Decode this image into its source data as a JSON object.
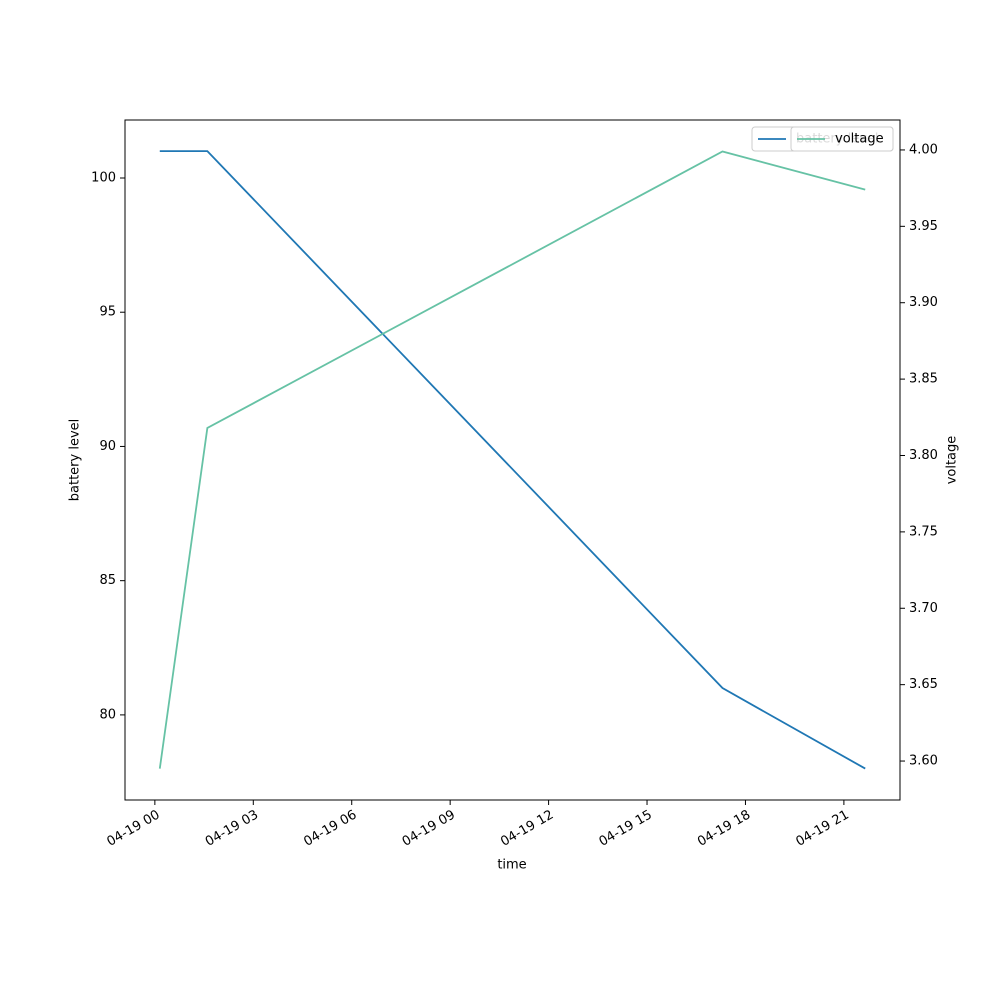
{
  "chart_data": {
    "type": "line",
    "x": [
      0.15,
      1.6,
      17.3,
      21.65
    ],
    "xlim": [
      -0.91,
      22.71
    ],
    "xticks": [
      {
        "value": 0,
        "label": "04-19 00"
      },
      {
        "value": 3,
        "label": "04-19 03"
      },
      {
        "value": 6,
        "label": "04-19 06"
      },
      {
        "value": 9,
        "label": "04-19 09"
      },
      {
        "value": 12,
        "label": "04-19 12"
      },
      {
        "value": 15,
        "label": "04-19 15"
      },
      {
        "value": 18,
        "label": "04-19 18"
      },
      {
        "value": 21,
        "label": "04-19 21"
      }
    ],
    "xlabel": "time",
    "ylabel": "battery level",
    "y2label": "voltage",
    "ylim": [
      76.83,
      102.16
    ],
    "yticks": [
      80,
      85,
      90,
      95,
      100
    ],
    "y2lim": [
      3.5745,
      4.0196
    ],
    "y2ticks": [
      {
        "value": 3.6,
        "label": "3.60"
      },
      3.65,
      {
        "value": 3.7,
        "label": "3.70"
      },
      3.75,
      {
        "value": 3.8,
        "label": "3.80"
      },
      3.85,
      {
        "value": 3.9,
        "label": "3.90"
      },
      3.95,
      {
        "value": 4.0,
        "label": "4.00"
      }
    ],
    "legend": "upper right",
    "series": [
      {
        "name": "battery level",
        "color": "#1f77b4",
        "values": [
          101,
          101,
          81,
          78
        ]
      },
      {
        "name": "voltage",
        "color": "#66c2a5",
        "axis": "y2",
        "values": [
          3.595,
          3.818,
          3.999,
          3.974
        ]
      }
    ]
  }
}
